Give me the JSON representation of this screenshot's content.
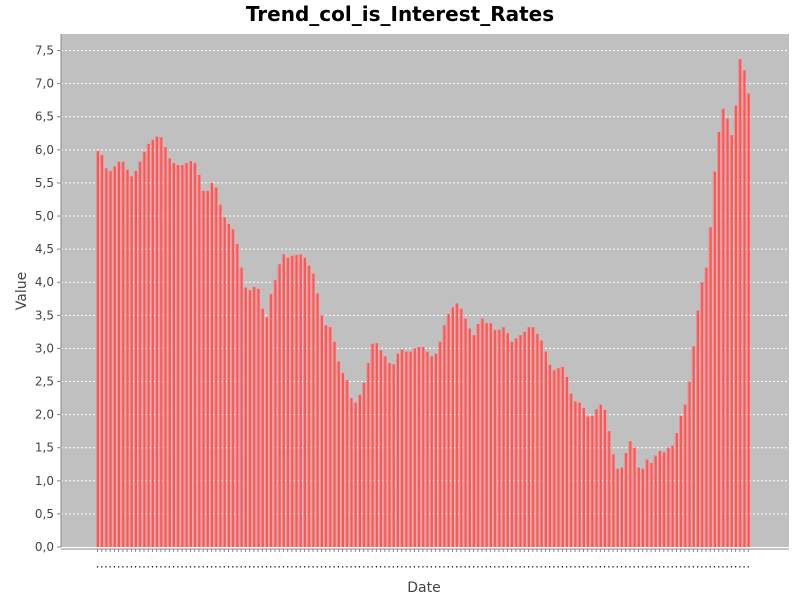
{
  "chart_data": {
    "type": "bar",
    "title": "Trend_col_is_Interest_Rates",
    "xlabel": "Date",
    "ylabel": "Value",
    "ylim": [
      0,
      7.75
    ],
    "yticks": [
      "0,0",
      "0,5",
      "1,0",
      "1,5",
      "2,0",
      "2,5",
      "3,0",
      "3,5",
      "4,0",
      "4,5",
      "5,0",
      "5,5",
      "6,0",
      "6,5",
      "7,0",
      "7,5"
    ],
    "grid": true,
    "colors": {
      "bar": "#ff5555",
      "bar_highlight": "#ff9090",
      "plot_bg": "#c0c0c0",
      "grid": "#ffffff"
    },
    "values": [
      5.98,
      5.92,
      5.72,
      5.68,
      5.75,
      5.82,
      5.82,
      5.7,
      5.6,
      5.68,
      5.82,
      5.97,
      6.09,
      6.15,
      6.2,
      6.19,
      6.04,
      5.87,
      5.8,
      5.77,
      5.77,
      5.8,
      5.83,
      5.8,
      5.62,
      5.38,
      5.38,
      5.5,
      5.43,
      5.17,
      4.98,
      4.88,
      4.8,
      4.58,
      4.22,
      3.92,
      3.88,
      3.93,
      3.9,
      3.6,
      3.47,
      3.82,
      4.03,
      4.27,
      4.42,
      4.37,
      4.4,
      4.41,
      4.42,
      4.37,
      4.25,
      4.13,
      3.83,
      3.5,
      3.35,
      3.32,
      3.1,
      2.8,
      2.63,
      2.52,
      2.25,
      2.18,
      2.3,
      2.48,
      2.78,
      3.07,
      3.08,
      2.97,
      2.88,
      2.78,
      2.76,
      2.92,
      2.98,
      2.95,
      2.95,
      3.0,
      3.02,
      3.02,
      2.95,
      2.88,
      2.92,
      3.1,
      3.35,
      3.52,
      3.62,
      3.68,
      3.6,
      3.45,
      3.3,
      3.2,
      3.37,
      3.45,
      3.38,
      3.38,
      3.28,
      3.28,
      3.32,
      3.23,
      3.1,
      3.15,
      3.2,
      3.25,
      3.32,
      3.32,
      3.22,
      3.12,
      2.95,
      2.75,
      2.67,
      2.7,
      2.72,
      2.57,
      2.32,
      2.2,
      2.18,
      2.1,
      1.97,
      1.98,
      2.08,
      2.15,
      2.07,
      1.75,
      1.4,
      1.18,
      1.2,
      1.42,
      1.6,
      1.5,
      1.2,
      1.18,
      1.32,
      1.27,
      1.38,
      1.45,
      1.43,
      1.5,
      1.53,
      1.72,
      1.98,
      2.15,
      2.5,
      3.03,
      3.57,
      4.0,
      4.22,
      4.83,
      5.67,
      6.27,
      6.62,
      6.47,
      6.22,
      6.67,
      7.37,
      7.2,
      6.85
    ]
  }
}
